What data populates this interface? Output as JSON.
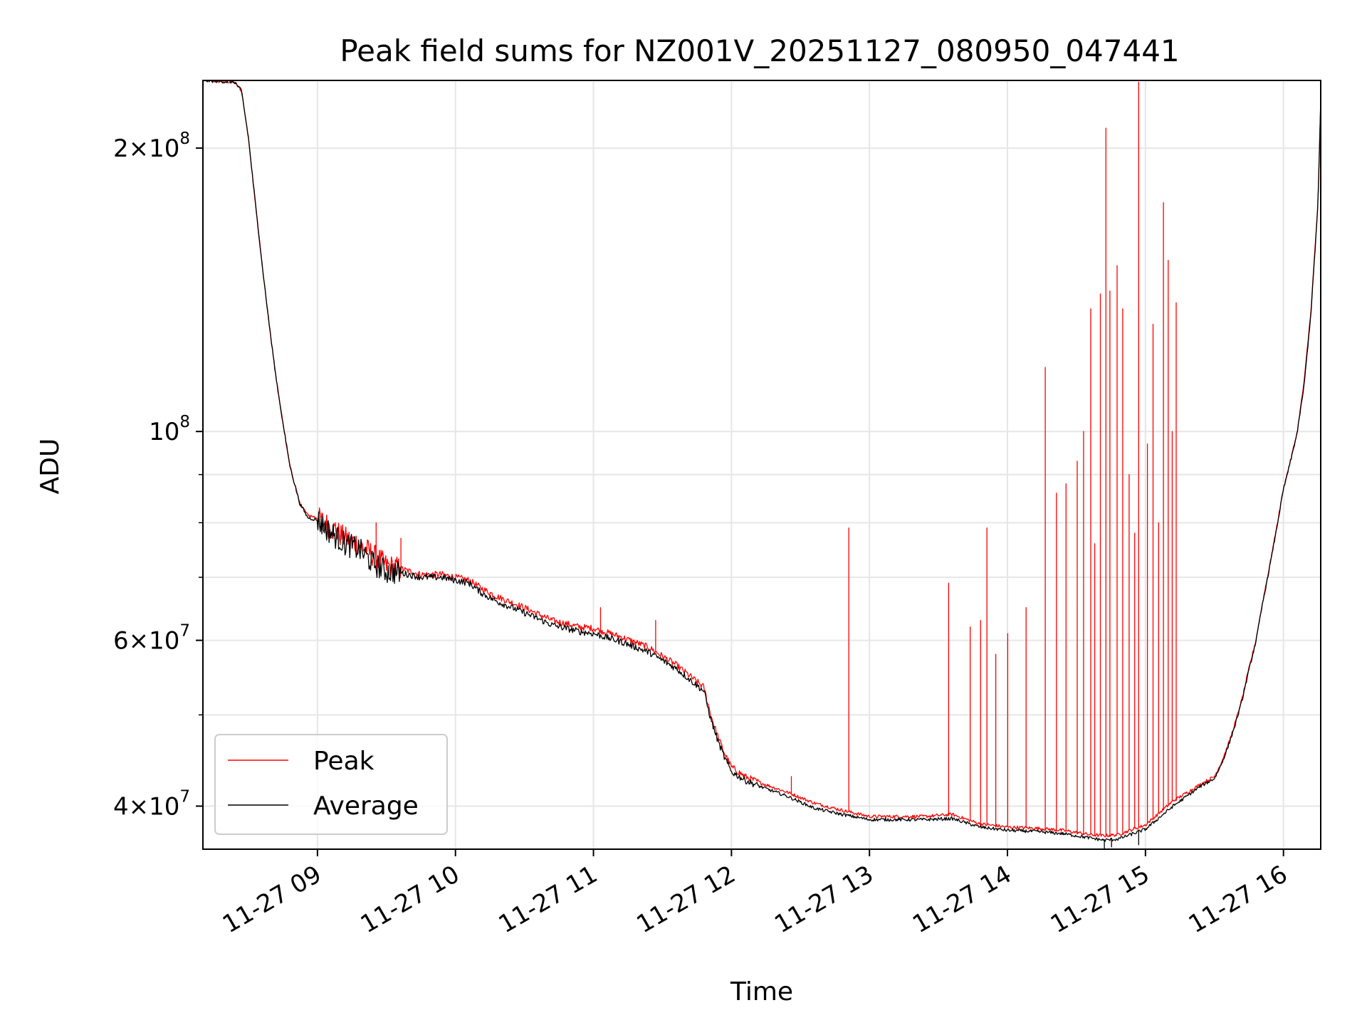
{
  "chart_data": {
    "type": "line",
    "title": "Peak field sums for NZ001V_20251127_080950_047441",
    "xlabel": "Time",
    "ylabel": "ADU",
    "yscale": "log",
    "ylim": [
      36000000,
      236000000
    ],
    "xlim_hours": [
      8.17,
      16.27
    ],
    "grid": true,
    "legend_position": "lower-left",
    "x_ticks": [
      {
        "hour": 9,
        "label": "11-27 09"
      },
      {
        "hour": 10,
        "label": "11-27 10"
      },
      {
        "hour": 11,
        "label": "11-27 11"
      },
      {
        "hour": 12,
        "label": "11-27 12"
      },
      {
        "hour": 13,
        "label": "11-27 13"
      },
      {
        "hour": 14,
        "label": "11-27 14"
      },
      {
        "hour": 15,
        "label": "11-27 15"
      },
      {
        "hour": 16,
        "label": "11-27 16"
      }
    ],
    "y_ticks": [
      {
        "value": 40000000,
        "mantissa": "4",
        "exp": "7"
      },
      {
        "value": 60000000,
        "mantissa": "6",
        "exp": "7"
      },
      {
        "value": 100000000,
        "mantissa": "",
        "exp": "8"
      },
      {
        "value": 200000000,
        "mantissa": "2",
        "exp": "8"
      }
    ],
    "y_minor_ticks": [
      50000000,
      70000000,
      80000000,
      90000000
    ],
    "series": [
      {
        "name": "Peak",
        "color": "#ff0000",
        "x": [
          8.17,
          8.4,
          8.45,
          8.5,
          8.55,
          8.6,
          8.65,
          8.7,
          8.75,
          8.8,
          8.87,
          8.93,
          9.0,
          9.1,
          9.2,
          9.3,
          9.4,
          9.5,
          9.6,
          9.75,
          9.9,
          10.0,
          10.1,
          10.2,
          10.3,
          10.5,
          10.7,
          10.9,
          11.0,
          11.2,
          11.4,
          11.6,
          11.8,
          11.85,
          11.9,
          11.95,
          12.0,
          12.1,
          12.2,
          12.4,
          12.6,
          12.8,
          13.0,
          13.2,
          13.4,
          13.6,
          13.8,
          14.0,
          14.2,
          14.4,
          14.6,
          14.7,
          14.8,
          15.0,
          15.2,
          15.4,
          15.5,
          15.55,
          15.6,
          15.65,
          15.7,
          15.75,
          15.8,
          15.85,
          15.9,
          15.95,
          16.0,
          16.05,
          16.1,
          16.15,
          16.2,
          16.25,
          16.27
        ],
        "y": [
          236000000,
          235000000,
          230000000,
          205000000,
          175000000,
          150000000,
          130000000,
          114000000,
          102000000,
          92000000,
          84000000,
          81500000,
          81000000,
          79000000,
          77000000,
          76000000,
          74000000,
          72000000,
          71500000,
          70500000,
          70500000,
          70000000,
          69500000,
          68000000,
          66800000,
          65000000,
          63000000,
          62000000,
          61800000,
          60500000,
          59000000,
          56500000,
          53500000,
          50000000,
          47500000,
          45500000,
          44000000,
          43000000,
          42400000,
          41400000,
          40300000,
          39600000,
          39000000,
          39000000,
          39000000,
          39200000,
          38300000,
          38000000,
          37900000,
          37700000,
          37300000,
          37200000,
          37300000,
          38200000,
          40500000,
          42200000,
          43000000,
          44500000,
          46500000,
          49000000,
          52000000,
          56000000,
          60000000,
          66000000,
          72000000,
          79000000,
          87000000,
          93000000,
          100000000,
          113000000,
          135000000,
          175000000,
          225000000
        ]
      },
      {
        "name": "Average",
        "color": "#000000",
        "x": [
          8.17,
          8.4,
          8.45,
          8.5,
          8.55,
          8.6,
          8.65,
          8.7,
          8.75,
          8.8,
          8.87,
          8.93,
          9.0,
          9.1,
          9.2,
          9.3,
          9.4,
          9.5,
          9.6,
          9.75,
          9.9,
          10.0,
          10.1,
          10.2,
          10.3,
          10.5,
          10.7,
          10.9,
          11.0,
          11.2,
          11.4,
          11.6,
          11.8,
          11.85,
          11.9,
          11.95,
          12.0,
          12.1,
          12.2,
          12.4,
          12.6,
          12.8,
          13.0,
          13.2,
          13.4,
          13.6,
          13.8,
          14.0,
          14.2,
          14.4,
          14.6,
          14.7,
          14.8,
          15.0,
          15.2,
          15.4,
          15.5,
          15.55,
          15.6,
          15.65,
          15.7,
          15.75,
          15.8,
          15.85,
          15.9,
          15.95,
          16.0,
          16.05,
          16.1,
          16.15,
          16.2,
          16.25,
          16.27
        ],
        "y": [
          236000000,
          235000000,
          230000000,
          205000000,
          175000000,
          150000000,
          130000000,
          114000000,
          102000000,
          92000000,
          84000000,
          81000000,
          80500000,
          78000000,
          76000000,
          75000000,
          72500000,
          71000000,
          70800000,
          70000000,
          70000000,
          69500000,
          69000000,
          67200000,
          66000000,
          64200000,
          62300000,
          61300000,
          61000000,
          59800000,
          58300000,
          56000000,
          53000000,
          49500000,
          47000000,
          45000000,
          43500000,
          42600000,
          42000000,
          41000000,
          39800000,
          39200000,
          38700000,
          38700000,
          38700000,
          38800000,
          38000000,
          37700000,
          37600000,
          37400000,
          37000000,
          36800000,
          36900000,
          37800000,
          40000000,
          42000000,
          42800000,
          44300000,
          46300000,
          48800000,
          51800000,
          55800000,
          59800000,
          65800000,
          71800000,
          78800000,
          86800000,
          92800000,
          99800000,
          112000000,
          134000000,
          174000000,
          224000000
        ]
      }
    ],
    "peak_spikes": [
      {
        "hour": 9.13,
        "value": 80000000
      },
      {
        "hour": 9.42,
        "value": 80000000
      },
      {
        "hour": 9.6,
        "value": 77000000
      },
      {
        "hour": 11.05,
        "value": 65000000
      },
      {
        "hour": 11.45,
        "value": 63000000
      },
      {
        "hour": 12.43,
        "value": 43000000
      },
      {
        "hour": 12.85,
        "value": 79000000
      },
      {
        "hour": 13.57,
        "value": 69000000
      },
      {
        "hour": 13.73,
        "value": 62000000
      },
      {
        "hour": 13.8,
        "value": 63000000
      },
      {
        "hour": 13.85,
        "value": 79000000
      },
      {
        "hour": 13.91,
        "value": 58000000
      },
      {
        "hour": 14.0,
        "value": 61000000
      },
      {
        "hour": 14.13,
        "value": 65000000
      },
      {
        "hour": 14.27,
        "value": 117000000
      },
      {
        "hour": 14.35,
        "value": 86000000
      },
      {
        "hour": 14.42,
        "value": 88000000
      },
      {
        "hour": 14.5,
        "value": 93000000
      },
      {
        "hour": 14.55,
        "value": 100000000
      },
      {
        "hour": 14.6,
        "value": 135000000
      },
      {
        "hour": 14.63,
        "value": 76000000
      },
      {
        "hour": 14.67,
        "value": 140000000
      },
      {
        "hour": 14.71,
        "value": 210000000
      },
      {
        "hour": 14.74,
        "value": 141000000
      },
      {
        "hour": 14.79,
        "value": 150000000
      },
      {
        "hour": 14.83,
        "value": 135000000
      },
      {
        "hour": 14.88,
        "value": 90000000
      },
      {
        "hour": 14.92,
        "value": 78000000
      },
      {
        "hour": 14.95,
        "value": 235000000
      },
      {
        "hour": 15.01,
        "value": 97000000
      },
      {
        "hour": 15.05,
        "value": 130000000
      },
      {
        "hour": 15.09,
        "value": 80000000
      },
      {
        "hour": 15.13,
        "value": 175000000
      },
      {
        "hour": 15.16,
        "value": 152000000
      },
      {
        "hour": 15.19,
        "value": 100000000
      },
      {
        "hour": 15.22,
        "value": 137000000
      }
    ],
    "average_dips": [
      {
        "hour": 14.7,
        "value": 36000000
      },
      {
        "hour": 14.75,
        "value": 36200000
      },
      {
        "hour": 14.95,
        "value": 36400000
      }
    ]
  }
}
